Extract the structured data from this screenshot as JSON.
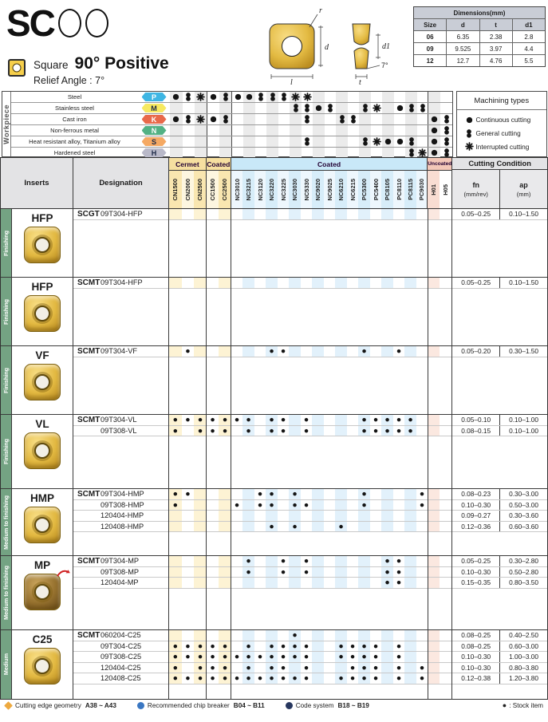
{
  "logo": {
    "text": "SC"
  },
  "subtitle": {
    "shape": "Square",
    "angle_title": "90° Positive",
    "relief": "Relief Angle : 7°"
  },
  "drawing": {
    "labels": {
      "r": "r",
      "d": "d",
      "l": "l",
      "d1": "d1",
      "t": "t",
      "angle": "7°"
    }
  },
  "dimensions_table": {
    "title": "Dimensions(mm)",
    "columns": [
      "Size",
      "d",
      "t",
      "d1"
    ],
    "rows": [
      [
        "06",
        "6.35",
        "2.38",
        "2.8"
      ],
      [
        "09",
        "9.525",
        "3.97",
        "4.4"
      ],
      [
        "12",
        "12.7",
        "4.76",
        "5.5"
      ]
    ]
  },
  "workpiece": {
    "label": "Workpiece",
    "legend_title": "Machining types",
    "legend": [
      {
        "sym": "c",
        "label": "Continuous cutting"
      },
      {
        "sym": "g",
        "label": "General cutting"
      },
      {
        "sym": "i",
        "label": "Interrupted cutting"
      }
    ],
    "rows": [
      {
        "material": "Steel",
        "letter": "P",
        "color": "#3fb6e3",
        "text": "#ffffff",
        "marks": [
          {
            "c": 1,
            "s": "c"
          },
          {
            "c": 2,
            "s": "g"
          },
          {
            "c": 3,
            "s": "i"
          },
          {
            "c": 4,
            "s": "c"
          },
          {
            "c": 5,
            "s": "g"
          },
          {
            "c": 6,
            "s": "c"
          },
          {
            "c": 7,
            "s": "c"
          },
          {
            "c": 8,
            "s": "g"
          },
          {
            "c": 9,
            "s": "g"
          },
          {
            "c": 10,
            "s": "g"
          },
          {
            "c": 11,
            "s": "i"
          },
          {
            "c": 12,
            "s": "i"
          }
        ]
      },
      {
        "material": "Stainless steel",
        "letter": "M",
        "color": "#f6e960",
        "text": "#1d2a48",
        "marks": [
          {
            "c": 11,
            "s": "g"
          },
          {
            "c": 12,
            "s": "g"
          },
          {
            "c": 13,
            "s": "c"
          },
          {
            "c": 14,
            "s": "g"
          },
          {
            "c": 17,
            "s": "g"
          },
          {
            "c": 18,
            "s": "i"
          },
          {
            "c": 20,
            "s": "c"
          },
          {
            "c": 21,
            "s": "g"
          },
          {
            "c": 22,
            "s": "g"
          }
        ]
      },
      {
        "material": "Cast iron",
        "letter": "K",
        "color": "#e9694a",
        "text": "#ffffff",
        "marks": [
          {
            "c": 1,
            "s": "c"
          },
          {
            "c": 2,
            "s": "g"
          },
          {
            "c": 3,
            "s": "i"
          },
          {
            "c": 4,
            "s": "c"
          },
          {
            "c": 5,
            "s": "g"
          },
          {
            "c": 12,
            "s": "g"
          },
          {
            "c": 15,
            "s": "g"
          },
          {
            "c": 16,
            "s": "g"
          },
          {
            "c": 23,
            "s": "c"
          },
          {
            "c": 24,
            "s": "g"
          }
        ]
      },
      {
        "material": "Non-ferrous metal",
        "letter": "N",
        "color": "#53b184",
        "text": "#ffffff",
        "marks": [
          {
            "c": 23,
            "s": "c"
          },
          {
            "c": 24,
            "s": "g"
          }
        ]
      },
      {
        "material": "Heat resistant alloy, Titanium alloy",
        "letter": "S",
        "color": "#f5a963",
        "text": "#1d2a48",
        "marks": [
          {
            "c": 12,
            "s": "g"
          },
          {
            "c": 17,
            "s": "g"
          },
          {
            "c": 18,
            "s": "i"
          },
          {
            "c": 19,
            "s": "c"
          },
          {
            "c": 20,
            "s": "c"
          },
          {
            "c": 21,
            "s": "g"
          },
          {
            "c": 23,
            "s": "c"
          },
          {
            "c": 24,
            "s": "g"
          }
        ]
      },
      {
        "material": "Hardened steel",
        "letter": "H",
        "color": "#b9b9c9",
        "text": "#1d2a48",
        "marks": [
          {
            "c": 21,
            "s": "g"
          },
          {
            "c": 22,
            "s": "i"
          },
          {
            "c": 23,
            "s": "c"
          },
          {
            "c": 24,
            "s": "g"
          }
        ]
      }
    ]
  },
  "table": {
    "headers": {
      "inserts": "Inserts",
      "designation": "Designation",
      "cutting": "Cutting Condition",
      "fn": "fn",
      "fn_unit": "(mm/rev)",
      "ap": "ap",
      "ap_unit": "(mm)"
    },
    "groups": [
      {
        "label": "Cermet",
        "from": 1,
        "to": 3,
        "theme": "yellow"
      },
      {
        "label": "Coated",
        "from": 4,
        "to": 5,
        "theme": "yellow"
      },
      {
        "label": "Coated",
        "from": 6,
        "to": 22,
        "theme": "blue"
      },
      {
        "label": "Uncoated",
        "from": 23,
        "to": 24,
        "theme": "pink"
      }
    ],
    "grades": [
      "CN1500",
      "CN2000",
      "CN2500",
      "CC1500",
      "CC2500",
      "NC3010",
      "NC3215",
      "NC3120",
      "NC3220",
      "NC3225",
      "NC3030",
      "NC5330",
      "NC9020",
      "NC9025",
      "NC6210",
      "NC6215",
      "PC5300",
      "PC5400",
      "PC8105",
      "PC8110",
      "PC8115",
      "PC9030",
      "H01",
      "H05"
    ],
    "blocks": [
      {
        "category": "Finishing",
        "type": "HFP",
        "prefix": "SCGT",
        "photo": "gold",
        "rows": [
          {
            "d": "09T304-HFP",
            "dots": [],
            "fn": "0.05–0.25",
            "ap": "0.10–1.50"
          }
        ]
      },
      {
        "category": "Finishing",
        "type": "HFP",
        "prefix": "SCMT",
        "photo": "gold",
        "rows": [
          {
            "d": "09T304-HFP",
            "dots": [],
            "fn": "0.05–0.25",
            "ap": "0.10–1.50"
          }
        ]
      },
      {
        "category": "Finishing",
        "type": "VF",
        "prefix": "SCMT",
        "photo": "gold",
        "rows": [
          {
            "d": "09T304-VF",
            "dots": [
              2,
              9,
              10,
              17,
              20
            ],
            "fn": "0.05–0.20",
            "ap": "0.30–1.50"
          }
        ]
      },
      {
        "category": "Finishing",
        "type": "VL",
        "prefix": "SCMT",
        "photo": "gold",
        "rows": [
          {
            "d": "09T304-VL",
            "dots": [
              1,
              2,
              3,
              4,
              5,
              6,
              7,
              9,
              10,
              12,
              17,
              18,
              19,
              20,
              21
            ],
            "fn": "0.05–0.10",
            "ap": "0.10–1.00"
          },
          {
            "d": "09T308-VL",
            "dots": [
              1,
              3,
              4,
              5,
              7,
              9,
              10,
              12,
              17,
              18,
              19,
              20,
              21
            ],
            "fn": "0.08–0.15",
            "ap": "0.10–1.00"
          }
        ]
      },
      {
        "category": "Medium to finishing",
        "type": "HMP",
        "prefix": "SCMT",
        "photo": "gold",
        "rows": [
          {
            "d": "09T304-HMP",
            "dots": [
              1,
              2,
              8,
              9,
              11,
              17,
              22
            ],
            "fn": "0.08–0.23",
            "ap": "0.30–3.00"
          },
          {
            "d": "09T308-HMP",
            "dots": [
              1,
              6,
              8,
              9,
              11,
              12,
              17,
              22
            ],
            "fn": "0.10–0.30",
            "ap": "0.50–3.00"
          },
          {
            "d": "120404-HMP",
            "dots": [],
            "fn": "0.09–0.27",
            "ap": "0.30–3.60"
          },
          {
            "d": "120408-HMP",
            "dots": [
              9,
              11,
              15
            ],
            "fn": "0.12–0.36",
            "ap": "0.60–3.60"
          }
        ]
      },
      {
        "category": "Medium to finishing",
        "type": "MP",
        "prefix": "SCMT",
        "photo": "bronze",
        "red_arrow": true,
        "rows": [
          {
            "d": "09T304-MP",
            "dots": [
              7,
              10,
              12,
              19,
              20
            ],
            "fn": "0.05–0.25",
            "ap": "0.30–2.80"
          },
          {
            "d": "09T308-MP",
            "dots": [
              7,
              10,
              12,
              19,
              20
            ],
            "fn": "0.10–0.30",
            "ap": "0.50–2.80"
          },
          {
            "d": "120404-MP",
            "dots": [
              19,
              20
            ],
            "fn": "0.15–0.35",
            "ap": "0.80–3.50"
          }
        ]
      },
      {
        "category": "Medium",
        "type": "C25",
        "prefix": "SCMT",
        "photo": "gold",
        "rows": [
          {
            "d": "060204-C25",
            "dots": [
              11
            ],
            "fn": "0.08–0.25",
            "ap": "0.40–2.50"
          },
          {
            "d": "09T304-C25",
            "dots": [
              1,
              2,
              3,
              4,
              5,
              7,
              9,
              10,
              11,
              12,
              15,
              16,
              17,
              18,
              20
            ],
            "fn": "0.08–0.25",
            "ap": "0.60–3.00"
          },
          {
            "d": "09T308-C25",
            "dots": [
              1,
              2,
              3,
              4,
              5,
              6,
              7,
              8,
              9,
              10,
              11,
              12,
              15,
              16,
              17,
              18,
              20
            ],
            "fn": "0.10–0.30",
            "ap": "1.00–3.00"
          },
          {
            "d": "120404-C25",
            "dots": [
              1,
              3,
              4,
              5,
              7,
              9,
              10,
              12,
              16,
              17,
              18,
              20,
              22
            ],
            "fn": "0.10–0.30",
            "ap": "0.80–3.80"
          },
          {
            "d": "120408-C25",
            "dots": [
              1,
              2,
              3,
              4,
              5,
              6,
              7,
              8,
              9,
              10,
              11,
              12,
              15,
              16,
              17,
              18,
              20,
              22
            ],
            "fn": "0.12–0.38",
            "ap": "1.20–3.80"
          }
        ]
      }
    ]
  },
  "footer": {
    "items": [
      {
        "icon": "diamond-icon",
        "color": "#eda93f",
        "label": "Cutting edge geometry",
        "pages": "A38 ~ A43"
      },
      {
        "icon": "circle-icon",
        "color": "#3a77c2",
        "label": "Recommended chip breaker",
        "pages": "B04 ~ B11"
      },
      {
        "icon": "circle-icon",
        "color": "#27375f",
        "label": "Code system",
        "pages": "B18 ~ B19"
      }
    ],
    "stock_dot": "●",
    "stock_label": ": Stock item"
  }
}
